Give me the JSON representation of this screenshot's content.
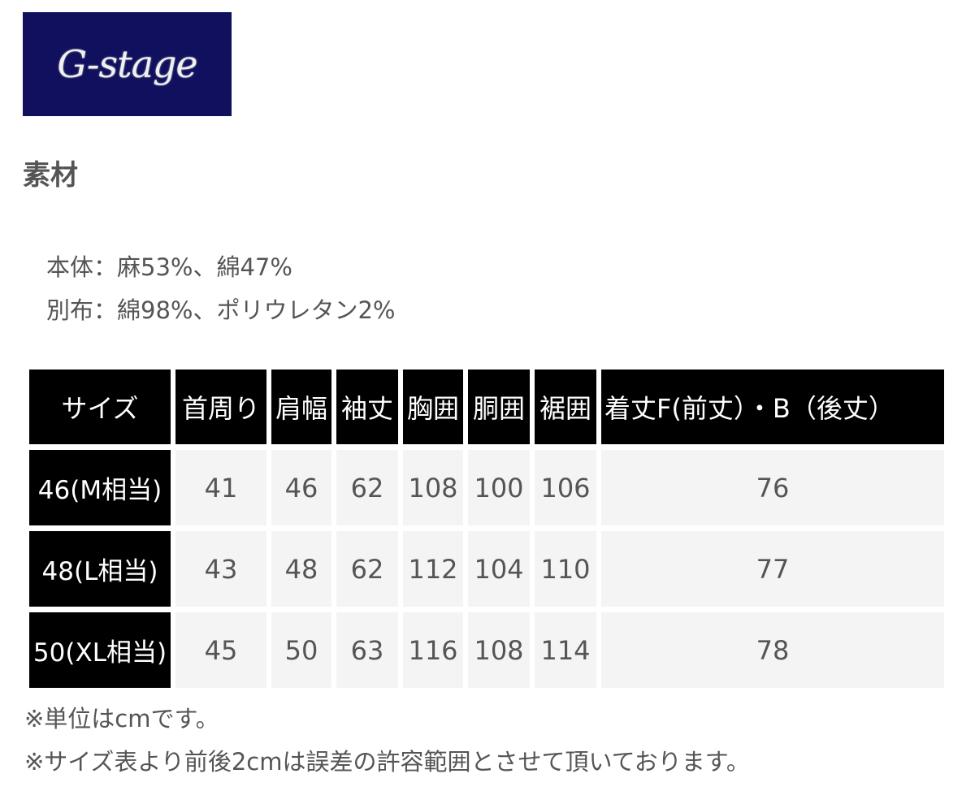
{
  "logo": {
    "text": "G-stage",
    "bg": "#10105e"
  },
  "section_title": "素材",
  "materials": [
    "本体：麻53%、綿47%",
    "別布：綿98%、ポリウレタン2%"
  ],
  "table": {
    "headers": [
      "サイズ",
      "首周り",
      "肩幅",
      "袖丈",
      "胸囲",
      "胴囲",
      "裾囲",
      "着丈F(前丈）・B（後丈）"
    ],
    "rows": [
      [
        "46(M相当)",
        "41",
        "46",
        "62",
        "108",
        "100",
        "106",
        "76"
      ],
      [
        "48(L相当)",
        "43",
        "48",
        "62",
        "112",
        "104",
        "110",
        "77"
      ],
      [
        "50(XL相当)",
        "45",
        "50",
        "63",
        "116",
        "108",
        "114",
        "78"
      ]
    ]
  },
  "notes": [
    "※単位はcmです。",
    "※サイズ表より前後2cmは誤差の許容範囲とさせて頂いております。"
  ]
}
